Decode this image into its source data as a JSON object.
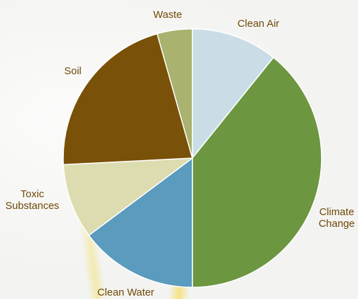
{
  "chart_data": {
    "type": "pie",
    "title": "",
    "slices": [
      {
        "label": "Clean Air",
        "lines": [
          "Clean Air"
        ],
        "value": 10.8,
        "color": "#cadde7"
      },
      {
        "label": "Climate Change",
        "lines": [
          "Climate",
          "Change"
        ],
        "value": 39.2,
        "color": "#6c9640"
      },
      {
        "label": "Clean Water",
        "lines": [
          "Clean Water"
        ],
        "value": 14.8,
        "color": "#5a9bbe"
      },
      {
        "label": "Toxic Substances",
        "lines": [
          "Toxic",
          "Substances"
        ],
        "value": 9.4,
        "color": "#dcdcb0"
      },
      {
        "label": "Soil",
        "lines": [
          "Soil"
        ],
        "value": 21.4,
        "color": "#7a5108"
      },
      {
        "label": "Waste",
        "lines": [
          "Waste"
        ],
        "value": 4.4,
        "color": "#a9b26e"
      }
    ],
    "start_angle_deg": 0,
    "direction": "clockwise",
    "legend": "none",
    "label_color": "#6e4806"
  }
}
